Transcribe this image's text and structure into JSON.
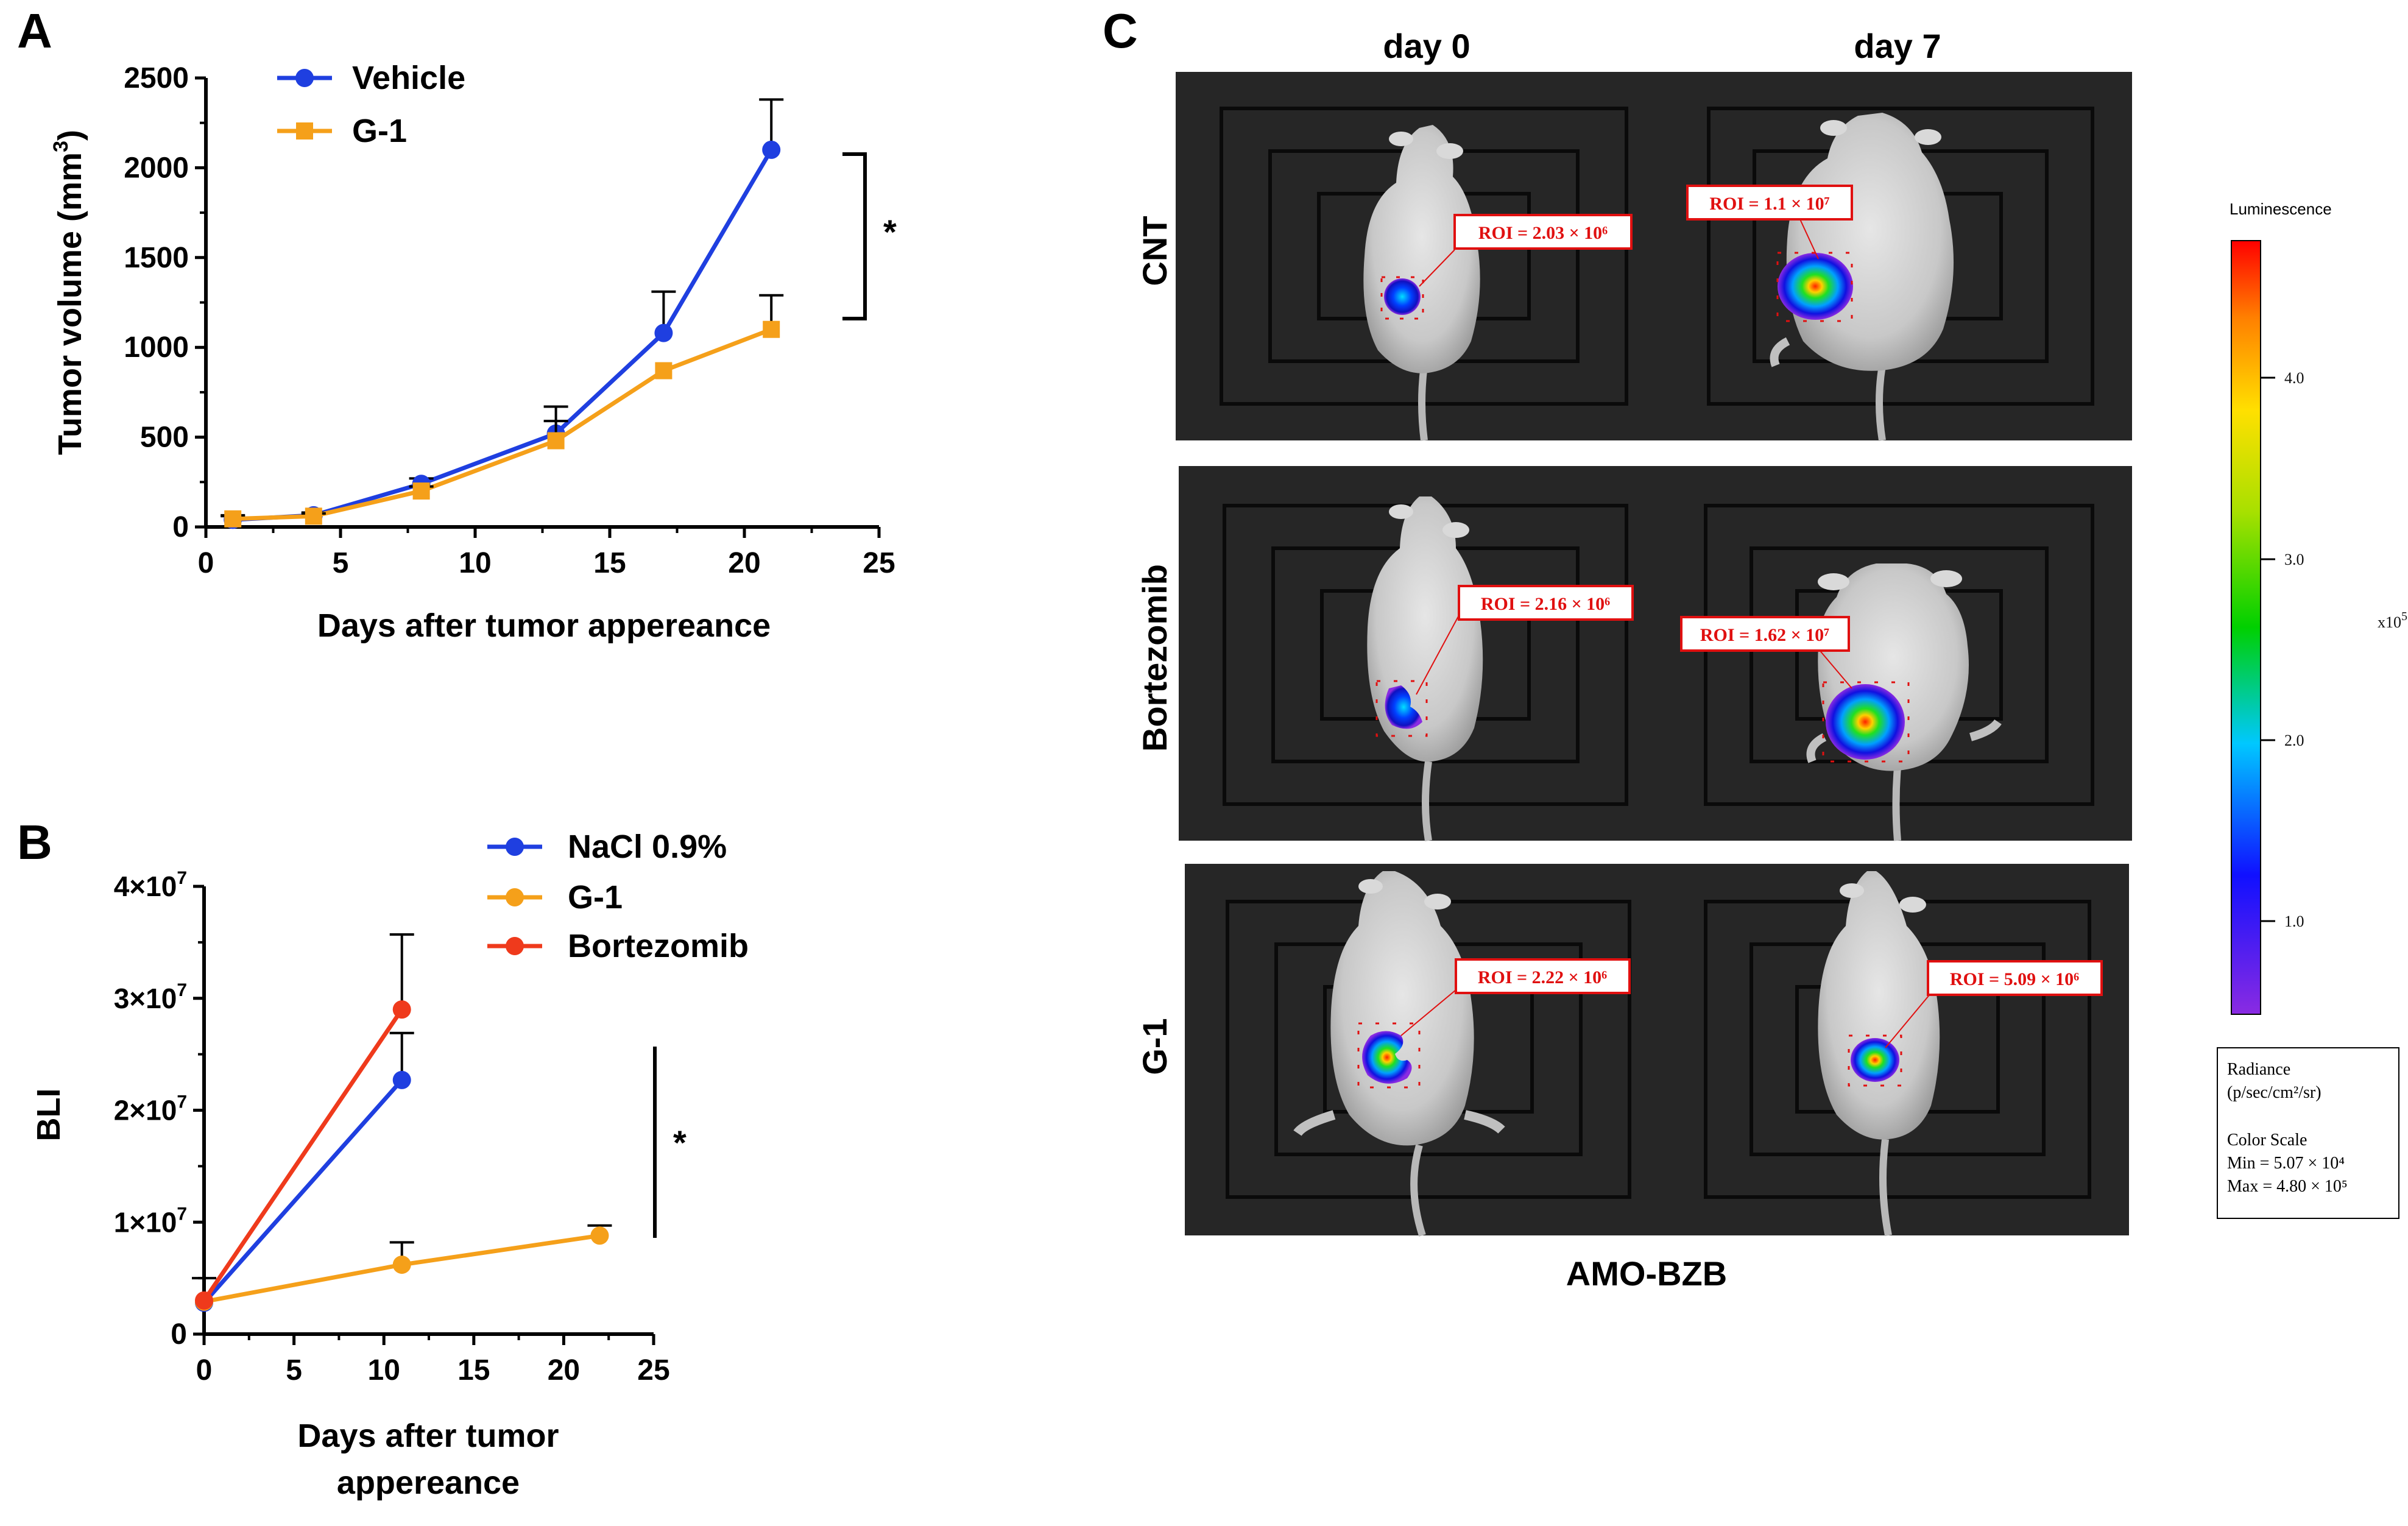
{
  "panel_labels": {
    "a": "A",
    "b": "B",
    "c": "C"
  },
  "chart_data": [
    {
      "id": "A",
      "type": "line",
      "xlabel": "Days after tumor appereance",
      "ylabel": "Tumor volume (mm",
      "ylabel_sup": "3",
      "ylabel_close": ")",
      "xlim": [
        0,
        25
      ],
      "ylim": [
        0,
        2500
      ],
      "xticks": [
        "0",
        "5",
        "10",
        "15",
        "20",
        "25"
      ],
      "yticks": [
        "0",
        "500",
        "1000",
        "1500",
        "2000",
        "2500"
      ],
      "significance": "*",
      "series": [
        {
          "name": "Vehicle",
          "color": "#1f3fe0",
          "marker": "circle",
          "x": [
            1,
            4,
            8,
            13,
            17,
            21
          ],
          "y": [
            40,
            65,
            240,
            520,
            1080,
            2100
          ],
          "err": [
            20,
            15,
            30,
            150,
            230,
            280
          ]
        },
        {
          "name": "G-1",
          "color": "#f5a01a",
          "marker": "square",
          "x": [
            1,
            4,
            8,
            13,
            17,
            21
          ],
          "y": [
            45,
            60,
            200,
            480,
            870,
            1100
          ],
          "err": [
            20,
            15,
            25,
            110,
            0,
            190
          ]
        }
      ]
    },
    {
      "id": "B",
      "type": "line",
      "xlabel_line1": "Days after tumor",
      "xlabel_line2": "appereance",
      "ylabel": "BLI",
      "xlim": [
        0,
        25
      ],
      "ylim": [
        0,
        40000000
      ],
      "xticks": [
        "0",
        "5",
        "10",
        "15",
        "20",
        "25"
      ],
      "ytick_zero": "0",
      "ytick_base": "×10",
      "ytick_exp": "7",
      "ytick_coefs": [
        "1",
        "2",
        "3",
        "4"
      ],
      "significance": "*",
      "series": [
        {
          "name": "NaCl 0.9%",
          "color": "#1f3fe0",
          "x": [
            0,
            11
          ],
          "y": [
            2800000,
            22700000
          ],
          "err": [
            2200000,
            4200000
          ]
        },
        {
          "name": "G-1",
          "color": "#f5a01a",
          "x": [
            0,
            11,
            22
          ],
          "y": [
            2900000,
            6200000,
            8800000
          ],
          "err": [
            0,
            2000000,
            900000
          ]
        },
        {
          "name": "Bortezomib",
          "color": "#ef3a1c",
          "x": [
            0,
            11
          ],
          "y": [
            3000000,
            29000000
          ],
          "err": [
            0,
            6700000
          ]
        }
      ]
    }
  ],
  "panel_c": {
    "columns": [
      "day 0",
      "day 7"
    ],
    "rows": [
      "CNT",
      "Bortezomib",
      "G-1"
    ],
    "roi_labels": [
      [
        "ROI = 2.03 × 10⁶",
        "ROI = 1.1 × 10⁷"
      ],
      [
        "ROI = 2.16 × 10⁶",
        "ROI = 1.62 × 10⁷"
      ],
      [
        "ROI = 2.22 × 10⁶",
        "ROI = 5.09 × 10⁶"
      ]
    ],
    "footer": "AMO-BZB",
    "colorbar": {
      "title": "Luminescence",
      "ticks": [
        "1.0",
        "2.0",
        "3.0",
        "4.0"
      ],
      "multiplier": "x10",
      "multiplier_exp": "5",
      "legend_lines": [
        "Radiance",
        "(p/sec/cm²/sr)",
        "Color Scale",
        "Min = 5.07 × 10⁴",
        "Max = 4.80 × 10⁵"
      ]
    }
  }
}
